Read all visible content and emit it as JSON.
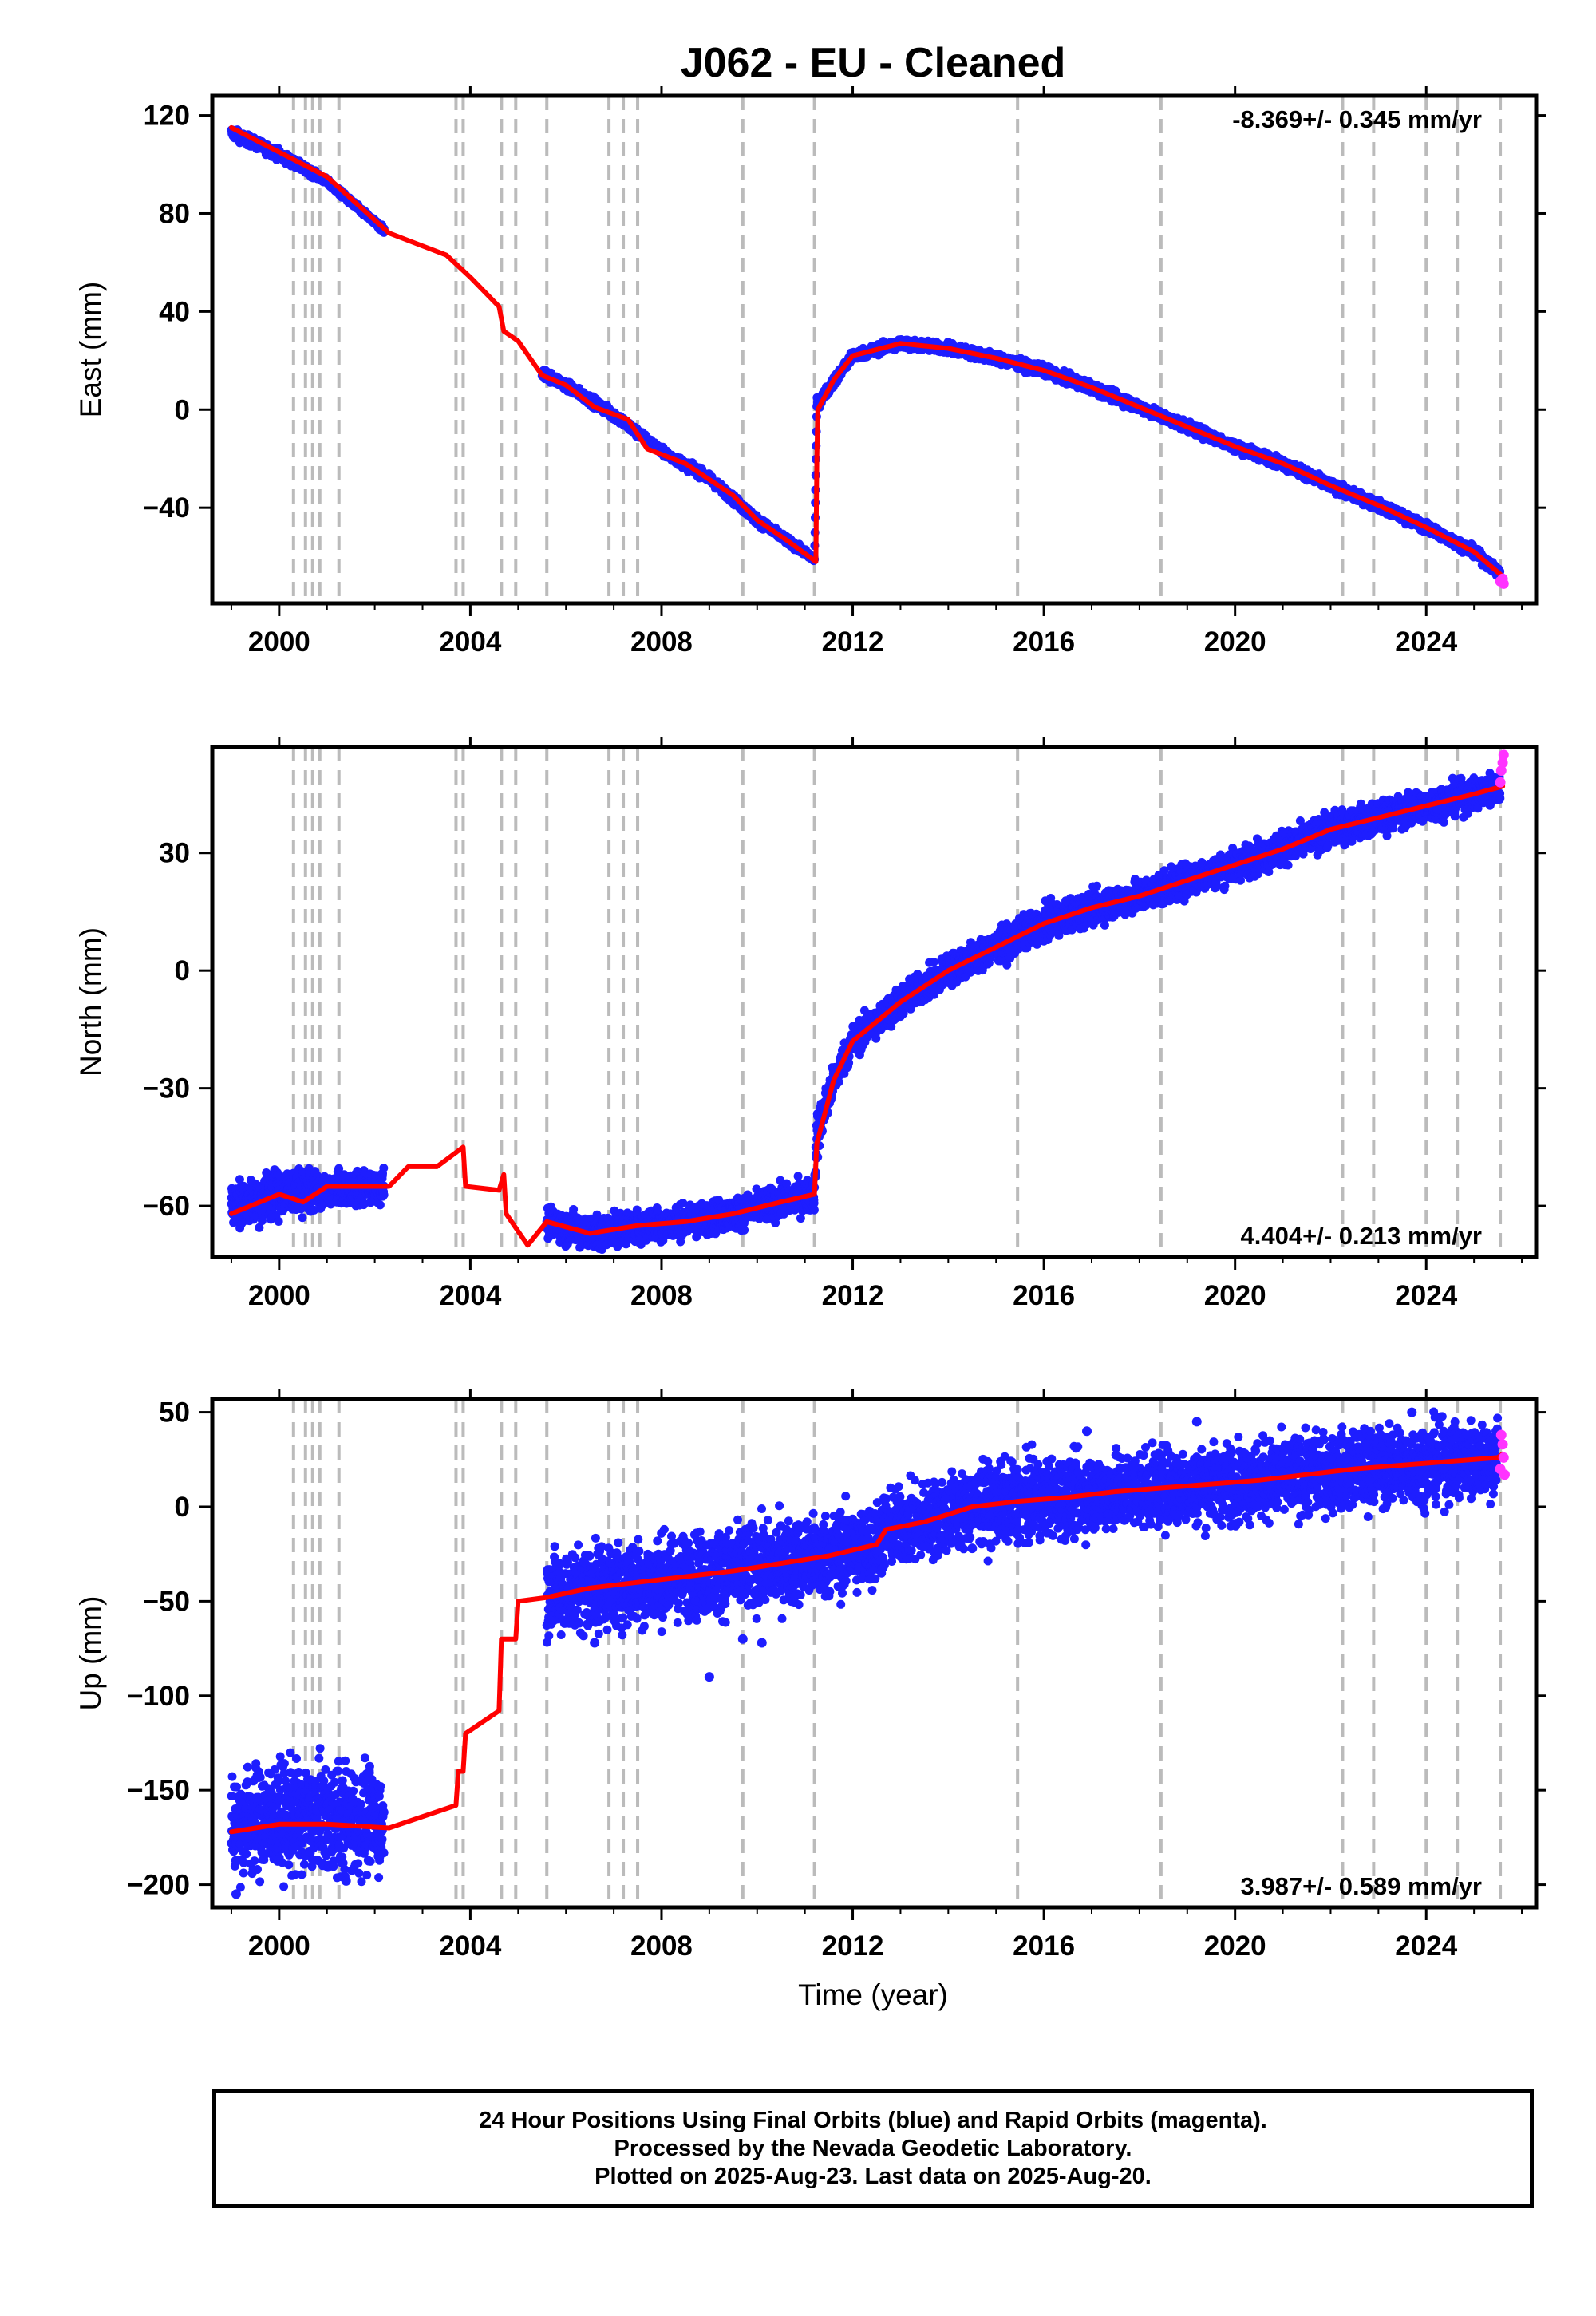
{
  "figure": {
    "title": "J062  - EU - Cleaned",
    "xlabel": "Time (year)"
  },
  "colors": {
    "final_orbits": "#1e1eff",
    "rapid_orbits": "#ff33ff",
    "model": "#ff0000",
    "event_lines": "#bbbbbb",
    "frame": "#000000"
  },
  "footer": {
    "line1": "24 Hour Positions Using Final Orbits (blue) and Rapid Orbits (magenta).",
    "line2": "Processed by the Nevada Geodetic Laboratory.",
    "line3": "Plotted on 2025-Aug-23. Last data on 2025-Aug-20."
  },
  "chart_data": [
    {
      "type": "scatter",
      "component": "East",
      "ylabel": "East (mm)",
      "rate_label": "-8.369+/- 0.345 mm/yr",
      "rate_position": "top-right",
      "xlim": [
        1998.6,
        2026.3
      ],
      "ylim": [
        -79,
        128
      ],
      "xticks": [
        2000,
        2004,
        2008,
        2012,
        2016,
        2020,
        2024
      ],
      "yticks": [
        -40,
        0,
        40,
        80,
        120
      ],
      "grid": false,
      "event_years": [
        2000.3,
        2000.55,
        2000.7,
        2000.85,
        2001.25,
        2003.7,
        2003.85,
        2004.65,
        2004.95,
        2005.6,
        2006.9,
        2007.2,
        2007.5,
        2009.7,
        2011.2,
        2015.45,
        2018.45,
        2022.25,
        2022.9,
        2024.0,
        2024.65,
        2025.55
      ],
      "model": [
        [
          1999.0,
          115
        ],
        [
          2001.0,
          95
        ],
        [
          2002.3,
          72
        ],
        [
          2003.5,
          63
        ],
        [
          2004.0,
          54
        ],
        [
          2004.6,
          42
        ],
        [
          2004.7,
          32
        ],
        [
          2005.0,
          28
        ],
        [
          2005.5,
          14
        ],
        [
          2006.0,
          10
        ],
        [
          2006.6,
          1
        ],
        [
          2007.3,
          -4
        ],
        [
          2007.7,
          -16
        ],
        [
          2008.5,
          -22
        ],
        [
          2009.5,
          -35
        ],
        [
          2010.0,
          -45
        ],
        [
          2010.6,
          -53
        ],
        [
          2011.23,
          -62
        ],
        [
          2011.25,
          -20
        ],
        [
          2011.27,
          0
        ],
        [
          2011.6,
          12
        ],
        [
          2012.0,
          22
        ],
        [
          2013.0,
          27
        ],
        [
          2014.0,
          25
        ],
        [
          2015.0,
          21
        ],
        [
          2016.0,
          16
        ],
        [
          2017.0,
          9
        ],
        [
          2018.0,
          1
        ],
        [
          2019.0,
          -7
        ],
        [
          2020.0,
          -15
        ],
        [
          2021.0,
          -22
        ],
        [
          2022.0,
          -31
        ],
        [
          2023.0,
          -39
        ],
        [
          2024.0,
          -48
        ],
        [
          2025.0,
          -58
        ],
        [
          2025.6,
          -68
        ]
      ],
      "final_orbits": [
        [
          1999.0,
          113,
          1.0
        ],
        [
          2000.0,
          104,
          1.0
        ],
        [
          2001.0,
          93,
          0.6
        ],
        [
          2002.2,
          73,
          0.6
        ],
        [
          2005.5,
          15,
          1.0
        ],
        [
          2006.0,
          10,
          0.9
        ],
        [
          2007.0,
          -2,
          1.0
        ],
        [
          2008.0,
          -17,
          0.8
        ],
        [
          2009.0,
          -28,
          0.9
        ],
        [
          2010.0,
          -45,
          0.9
        ],
        [
          2011.2,
          -61,
          0.6
        ],
        [
          2011.25,
          2,
          1.0
        ],
        [
          2012.0,
          22,
          1.0
        ],
        [
          2013.0,
          27,
          1.0
        ],
        [
          2014.0,
          25,
          1.0
        ],
        [
          2015.0,
          21,
          1.0
        ],
        [
          2016.0,
          16,
          1.0
        ],
        [
          2017.0,
          9,
          1.0
        ],
        [
          2018.0,
          1,
          1.0
        ],
        [
          2019.0,
          -7,
          1.0
        ],
        [
          2020.0,
          -15,
          1.0
        ],
        [
          2021.0,
          -22,
          1.0
        ],
        [
          2022.0,
          -31,
          1.0
        ],
        [
          2023.0,
          -39,
          1.0
        ],
        [
          2024.0,
          -48,
          1.0
        ],
        [
          2025.0,
          -58,
          1.0
        ],
        [
          2025.55,
          -67,
          1.0
        ]
      ],
      "rapid_orbits": [
        [
          2025.55,
          -70
        ],
        [
          2025.6,
          -69
        ],
        [
          2025.62,
          -71
        ]
      ]
    },
    {
      "type": "scatter",
      "component": "North",
      "ylabel": "North (mm)",
      "rate_label": "4.404+/- 0.213 mm/yr",
      "rate_position": "bottom-right",
      "xlim": [
        1998.6,
        2026.3
      ],
      "ylim": [
        -73,
        57
      ],
      "xticks": [
        2000,
        2004,
        2008,
        2012,
        2016,
        2020,
        2024
      ],
      "yticks": [
        -60,
        -30,
        0,
        30
      ],
      "grid": false,
      "event_years": [
        2000.3,
        2000.55,
        2000.7,
        2000.85,
        2001.25,
        2003.7,
        2003.85,
        2004.65,
        2004.95,
        2005.6,
        2006.9,
        2007.2,
        2007.5,
        2009.7,
        2011.2,
        2015.45,
        2018.45,
        2022.25,
        2022.9,
        2024.0,
        2024.65,
        2025.55
      ],
      "model": [
        [
          1999.0,
          -62
        ],
        [
          2000.0,
          -57
        ],
        [
          2000.5,
          -59
        ],
        [
          2001.0,
          -55
        ],
        [
          2002.3,
          -55
        ],
        [
          2002.7,
          -50
        ],
        [
          2003.3,
          -50
        ],
        [
          2003.85,
          -45
        ],
        [
          2003.9,
          -55
        ],
        [
          2004.6,
          -56
        ],
        [
          2004.7,
          -52
        ],
        [
          2004.75,
          -62
        ],
        [
          2005.2,
          -70
        ],
        [
          2005.6,
          -64
        ],
        [
          2006.5,
          -67
        ],
        [
          2007.5,
          -65
        ],
        [
          2008.5,
          -64
        ],
        [
          2009.5,
          -62
        ],
        [
          2010.5,
          -59
        ],
        [
          2011.2,
          -57
        ],
        [
          2011.25,
          -44
        ],
        [
          2011.6,
          -28
        ],
        [
          2012.0,
          -18
        ],
        [
          2013.0,
          -8
        ],
        [
          2014.0,
          0
        ],
        [
          2015.0,
          6
        ],
        [
          2016.0,
          12
        ],
        [
          2017.0,
          16
        ],
        [
          2018.0,
          19
        ],
        [
          2019.0,
          23
        ],
        [
          2020.0,
          27
        ],
        [
          2021.0,
          31
        ],
        [
          2022.0,
          36
        ],
        [
          2023.0,
          39
        ],
        [
          2024.0,
          42
        ],
        [
          2025.0,
          45
        ],
        [
          2025.6,
          47
        ]
      ],
      "final_orbits": [
        [
          1999.0,
          -60,
          3.0
        ],
        [
          2000.0,
          -57,
          3.0
        ],
        [
          2001.0,
          -56,
          2.0
        ],
        [
          2002.2,
          -55,
          2.0
        ],
        [
          2005.6,
          -64,
          2.0
        ],
        [
          2006.5,
          -67,
          2.0
        ],
        [
          2007.5,
          -65,
          2.0
        ],
        [
          2008.5,
          -64,
          2.0
        ],
        [
          2009.5,
          -62,
          2.0
        ],
        [
          2010.5,
          -59,
          2.0
        ],
        [
          2011.2,
          -57,
          2.0
        ],
        [
          2011.25,
          -42,
          3.0
        ],
        [
          2011.6,
          -28,
          2.0
        ],
        [
          2012.0,
          -18,
          2.0
        ],
        [
          2013.0,
          -8,
          2.0
        ],
        [
          2014.0,
          0,
          2.0
        ],
        [
          2015.0,
          6,
          2.0
        ],
        [
          2016.0,
          12,
          2.0
        ],
        [
          2017.0,
          16,
          2.0
        ],
        [
          2018.0,
          19,
          2.0
        ],
        [
          2019.0,
          23,
          2.0
        ],
        [
          2020.0,
          27,
          2.0
        ],
        [
          2021.0,
          31,
          2.0
        ],
        [
          2022.0,
          36,
          2.0
        ],
        [
          2023.0,
          39,
          2.0
        ],
        [
          2024.0,
          42,
          2.0
        ],
        [
          2025.0,
          45,
          2.0
        ],
        [
          2025.55,
          47,
          2.0
        ]
      ],
      "rapid_orbits": [
        [
          2025.55,
          48
        ],
        [
          2025.57,
          51
        ],
        [
          2025.6,
          53
        ],
        [
          2025.62,
          55
        ]
      ]
    },
    {
      "type": "scatter",
      "component": "Up",
      "ylabel": "Up (mm)",
      "rate_label": "3.987+/- 0.589 mm/yr",
      "rate_position": "bottom-right",
      "xlim": [
        1998.6,
        2026.3
      ],
      "ylim": [
        -212,
        57
      ],
      "xticks": [
        2000,
        2004,
        2008,
        2012,
        2016,
        2020,
        2024
      ],
      "yticks": [
        -200,
        -150,
        -100,
        -50,
        0,
        50
      ],
      "grid": false,
      "event_years": [
        2000.3,
        2000.55,
        2000.7,
        2000.85,
        2001.25,
        2003.7,
        2003.85,
        2004.65,
        2004.95,
        2005.6,
        2006.9,
        2007.2,
        2007.5,
        2009.7,
        2011.2,
        2015.45,
        2018.45,
        2022.25,
        2022.9,
        2024.0,
        2024.65,
        2025.55
      ],
      "model": [
        [
          1999.0,
          -172
        ],
        [
          2000.0,
          -168
        ],
        [
          2001.0,
          -168
        ],
        [
          2002.3,
          -170
        ],
        [
          2003.7,
          -158
        ],
        [
          2003.75,
          -140
        ],
        [
          2003.85,
          -140
        ],
        [
          2003.9,
          -120
        ],
        [
          2004.6,
          -108
        ],
        [
          2004.65,
          -70
        ],
        [
          2004.95,
          -70
        ],
        [
          2005.0,
          -50
        ],
        [
          2005.6,
          -48
        ],
        [
          2006.5,
          -43
        ],
        [
          2007.5,
          -40
        ],
        [
          2008.5,
          -37
        ],
        [
          2009.5,
          -34
        ],
        [
          2010.5,
          -30
        ],
        [
          2011.5,
          -26
        ],
        [
          2012.5,
          -20
        ],
        [
          2012.7,
          -12
        ],
        [
          2013.5,
          -8
        ],
        [
          2014.5,
          0
        ],
        [
          2015.5,
          3
        ],
        [
          2016.5,
          5
        ],
        [
          2017.5,
          8
        ],
        [
          2018.5,
          10
        ],
        [
          2019.5,
          12
        ],
        [
          2020.5,
          14
        ],
        [
          2021.5,
          17
        ],
        [
          2022.5,
          20
        ],
        [
          2023.5,
          22
        ],
        [
          2024.5,
          24
        ],
        [
          2025.5,
          26
        ],
        [
          2025.6,
          28
        ]
      ],
      "final_orbits": [
        [
          1999.0,
          -168,
          14.0
        ],
        [
          2000.0,
          -165,
          14.0
        ],
        [
          2001.0,
          -165,
          14.0
        ],
        [
          2002.2,
          -166,
          14.0
        ],
        [
          2005.6,
          -47,
          10.0
        ],
        [
          2006.5,
          -43,
          11.0
        ],
        [
          2007.5,
          -40,
          11.0
        ],
        [
          2008.5,
          -37,
          11.0
        ],
        [
          2009.5,
          -34,
          11.0
        ],
        [
          2010.5,
          -30,
          11.0
        ],
        [
          2011.5,
          -26,
          11.0
        ],
        [
          2012.5,
          -20,
          11.0
        ],
        [
          2012.7,
          -12,
          10.0
        ],
        [
          2013.5,
          -8,
          10.0
        ],
        [
          2014.5,
          0,
          10.0
        ],
        [
          2015.5,
          3,
          10.0
        ],
        [
          2016.5,
          5,
          10.0
        ],
        [
          2017.5,
          8,
          10.0
        ],
        [
          2018.5,
          10,
          10.0
        ],
        [
          2019.5,
          12,
          10.0
        ],
        [
          2020.5,
          14,
          10.0
        ],
        [
          2021.5,
          17,
          10.0
        ],
        [
          2022.5,
          20,
          10.0
        ],
        [
          2023.5,
          22,
          10.0
        ],
        [
          2024.5,
          24,
          10.0
        ],
        [
          2025.5,
          26,
          10.0
        ]
      ],
      "outliers": [
        [
          1999.1,
          -205
        ],
        [
          2001.4,
          -198
        ],
        [
          2009.0,
          -90
        ],
        [
          2009.7,
          -70
        ],
        [
          2010.1,
          -72
        ],
        [
          2014.5,
          -22
        ],
        [
          2016.9,
          40
        ],
        [
          2019.2,
          45
        ],
        [
          2023.7,
          50
        ],
        [
          2006.6,
          -72
        ]
      ],
      "rapid_orbits": [
        [
          2025.55,
          20
        ],
        [
          2025.57,
          38
        ],
        [
          2025.6,
          33
        ],
        [
          2025.62,
          26
        ],
        [
          2025.64,
          17
        ]
      ]
    }
  ]
}
